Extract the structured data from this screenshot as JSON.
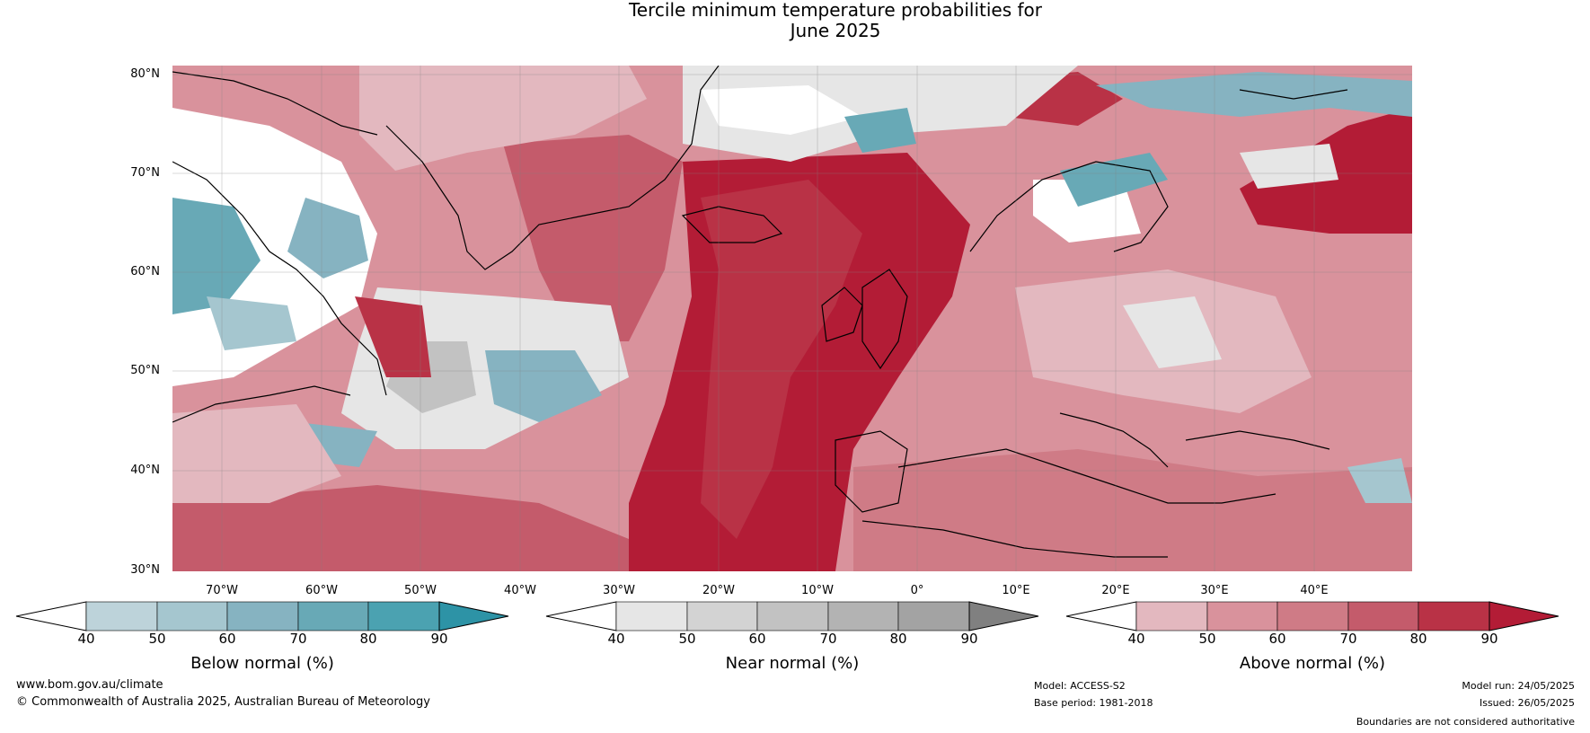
{
  "title": {
    "line1": "Tercile minimum temperature probabilities for",
    "line2": "June 2025"
  },
  "map": {
    "lat_labels": [
      "80°N",
      "70°N",
      "60°N",
      "50°N",
      "40°N",
      "30°N"
    ],
    "lon_labels": [
      "70°W",
      "60°W",
      "50°W",
      "40°W",
      "30°W",
      "20°W",
      "10°W",
      "0°",
      "10°E",
      "20°E",
      "30°E",
      "40°E"
    ]
  },
  "colorbars": [
    {
      "label": "Below normal (%)",
      "ticks": [
        "40",
        "50",
        "60",
        "70",
        "80",
        "90"
      ],
      "colors": [
        "#ffffff",
        "#bdd3da",
        "#a5c6cf",
        "#86b3c1",
        "#68a9b6",
        "#4ba2b1",
        "#2d93a6"
      ]
    },
    {
      "label": "Near normal (%)",
      "ticks": [
        "40",
        "50",
        "60",
        "70",
        "80",
        "90"
      ],
      "colors": [
        "#ffffff",
        "#e6e6e6",
        "#d3d3d3",
        "#c2c2c2",
        "#b3b3b3",
        "#a3a3a3",
        "#808080"
      ]
    },
    {
      "label": "Above normal (%)",
      "ticks": [
        "40",
        "50",
        "60",
        "70",
        "80",
        "90"
      ],
      "colors": [
        "#ffffff",
        "#e3b8bf",
        "#d9929c",
        "#cf7b86",
        "#c45b6b",
        "#b93246",
        "#b31c36"
      ]
    }
  ],
  "footer": {
    "website": "www.bom.gov.au/climate",
    "copyright": "© Commonwealth of Australia 2025, Australian Bureau of Meteorology",
    "model": "Model: ACCESS-S2",
    "base_period": "Base period: 1981-2018",
    "model_run": "Model run: 24/05/2025",
    "issued": "Issued: 26/05/2025",
    "disclaimer": "Boundaries are not considered authoritative"
  }
}
